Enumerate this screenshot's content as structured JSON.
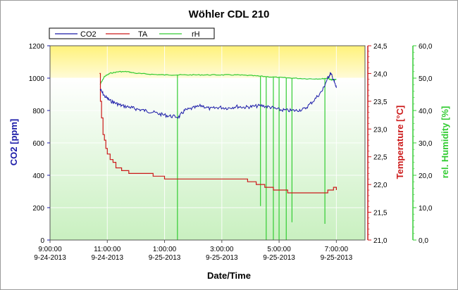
{
  "chart_data": {
    "type": "line",
    "title": "Wöhler CDL 210",
    "xlabel": "Date/Time",
    "x_ticks": [
      {
        "time": "9:00:00",
        "date": "9-24-2013",
        "h": 9
      },
      {
        "time": "11:00:00",
        "date": "9-24-2013",
        "h": 11
      },
      {
        "time": "1:00:00",
        "date": "9-25-2013",
        "h": 13
      },
      {
        "time": "3:00:00",
        "date": "9-25-2013",
        "h": 15
      },
      {
        "time": "5:00:00",
        "date": "9-25-2013",
        "h": 17
      },
      {
        "time": "7:00:00",
        "date": "9-25-2013",
        "h": 19
      }
    ],
    "x_range_hours": [
      9,
      20
    ],
    "axes": {
      "co2": {
        "label": "CO2 [ppm]",
        "min": 0,
        "max": 1200,
        "ticks": [
          "0",
          "200",
          "400",
          "600",
          "800",
          "1000",
          "1200"
        ],
        "color": "#1a1aa8"
      },
      "ta": {
        "label": "Temperature [°C]",
        "min": 21.0,
        "max": 24.5,
        "ticks": [
          "21,0",
          "21,5",
          "22,0",
          "22,5",
          "23,0",
          "23,5",
          "24,0",
          "24,5"
        ],
        "color": "#cc1a1a"
      },
      "rh": {
        "label": "rel. Humidity [%]",
        "min": 0,
        "max": 60,
        "ticks": [
          "0,0",
          "10,0",
          "20,0",
          "30,0",
          "40,0",
          "50,0",
          "60,0"
        ],
        "color": "#33cc33"
      }
    },
    "threshold_co2": 1000,
    "legend": {
      "placement": "top-left",
      "entries": [
        "CO2",
        "TA",
        "rH"
      ]
    },
    "series": [
      {
        "name": "CO2",
        "axis": "co2",
        "color": "#1a1aa8",
        "x": [
          10.75,
          10.9,
          11.1,
          11.3,
          11.5,
          11.8,
          12.0,
          12.3,
          12.6,
          12.9,
          13.2,
          13.5,
          13.7,
          14.0,
          14.3,
          14.6,
          14.9,
          15.2,
          15.5,
          15.8,
          16.1,
          16.4,
          16.7,
          17.0,
          17.3,
          17.6,
          17.9,
          18.2,
          18.5,
          18.7,
          18.8,
          18.9,
          19.0
        ],
        "y": [
          930,
          890,
          860,
          845,
          830,
          820,
          810,
          800,
          790,
          775,
          765,
          760,
          800,
          815,
          830,
          810,
          820,
          815,
          825,
          820,
          825,
          830,
          820,
          805,
          800,
          800,
          810,
          860,
          920,
          1000,
          1030,
          990,
          940
        ]
      },
      {
        "name": "TA",
        "axis": "ta",
        "color": "#cc1a1a",
        "x": [
          10.73,
          10.76,
          10.8,
          10.85,
          10.9,
          10.95,
          11.0,
          11.1,
          11.2,
          11.3,
          11.5,
          11.75,
          12.0,
          12.3,
          12.6,
          12.9,
          13.0,
          13.5,
          14.0,
          14.5,
          15.0,
          15.5,
          15.9,
          16.2,
          16.5,
          16.8,
          17.0,
          17.3,
          17.6,
          17.9,
          18.2,
          18.5,
          18.7,
          18.8,
          18.9,
          19.0
        ],
        "y": [
          24.0,
          23.5,
          23.2,
          22.9,
          22.8,
          22.65,
          22.55,
          22.45,
          22.4,
          22.3,
          22.25,
          22.2,
          22.2,
          22.2,
          22.15,
          22.15,
          22.1,
          22.1,
          22.1,
          22.1,
          22.1,
          22.1,
          22.05,
          22.0,
          21.95,
          21.9,
          21.9,
          21.85,
          21.85,
          21.85,
          21.85,
          21.85,
          21.9,
          21.9,
          21.95,
          21.9
        ]
      },
      {
        "name": "rH",
        "axis": "rh",
        "color": "#33cc33",
        "x": [
          10.75,
          10.9,
          11.1,
          11.4,
          11.7,
          12.0,
          12.5,
          13.0,
          13.5,
          14.0,
          14.5,
          15.0,
          15.5,
          16.0,
          16.5,
          17.0,
          17.5,
          18.0,
          18.5,
          18.7,
          18.8,
          18.9,
          19.0
        ],
        "y": [
          48.0,
          50.5,
          51.5,
          52.0,
          52.0,
          51.5,
          51.2,
          51.0,
          51.0,
          51.0,
          51.0,
          51.0,
          51.0,
          50.8,
          50.5,
          50.2,
          50.0,
          49.8,
          49.8,
          50.0,
          49.5,
          49.5,
          49.6
        ]
      }
    ],
    "rh_dropouts": [
      {
        "x": 13.45,
        "y": 0
      },
      {
        "x": 16.35,
        "y": 10.5
      },
      {
        "x": 16.55,
        "y": 0
      },
      {
        "x": 16.8,
        "y": 0
      },
      {
        "x": 17.0,
        "y": 0
      },
      {
        "x": 17.25,
        "y": 0
      },
      {
        "x": 17.45,
        "y": 5.5
      },
      {
        "x": 18.6,
        "y": 5.0
      }
    ]
  }
}
